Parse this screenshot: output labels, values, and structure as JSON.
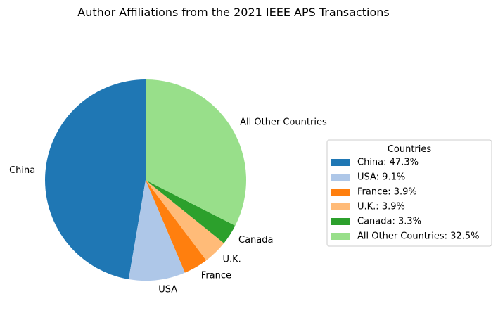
{
  "chart_data": {
    "type": "pie",
    "title": "Author Affiliations from the 2021 IEEE APS Transactions",
    "legend_title": "Countries",
    "legend_placement": "right",
    "start_angle_deg": 90,
    "direction": "counterclockwise",
    "slices": [
      {
        "label": "China",
        "value": 47.3,
        "color": "#1f77b4",
        "legend": "China: 47.3%"
      },
      {
        "label": "USA",
        "value": 9.1,
        "color": "#aec7e8",
        "legend": "USA: 9.1%"
      },
      {
        "label": "France",
        "value": 3.9,
        "color": "#ff7f0e",
        "legend": "France: 3.9%"
      },
      {
        "label": "U.K.",
        "value": 3.9,
        "color": "#ffbb78",
        "legend": "U.K.: 3.9%"
      },
      {
        "label": "Canada",
        "value": 3.3,
        "color": "#2ca02c",
        "legend": "Canada: 3.3%"
      },
      {
        "label": "All Other Countries",
        "value": 32.5,
        "color": "#98df8a",
        "legend": "All Other Countries: 32.5%"
      }
    ]
  }
}
